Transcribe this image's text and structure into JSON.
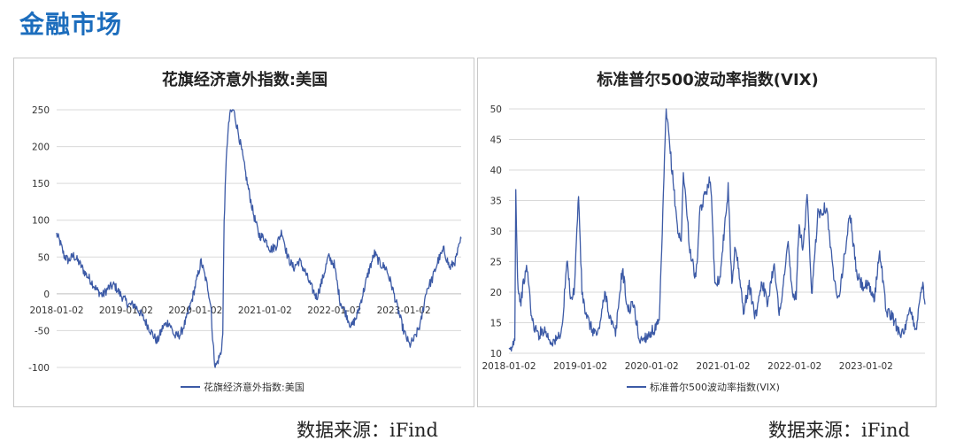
{
  "header": {
    "title": "金融市场"
  },
  "sources": {
    "left": "数据来源：iFind",
    "right": "数据来源：iFind"
  },
  "colors": {
    "accent": "#1c6dbd",
    "series": "#3c5aa6"
  },
  "chart_data": [
    {
      "type": "line",
      "title": "花旗经济意外指数:美国",
      "xlabel": "",
      "ylabel": "",
      "ylim": [
        -100,
        250
      ],
      "yticks": [
        "250",
        "200",
        "150",
        "100",
        "50",
        "0",
        "-50",
        "-100"
      ],
      "xlim": [
        "2018-01-02",
        "2023-10-31"
      ],
      "xticks": [
        "2018-01-02",
        "2019-01-02",
        "2020-01-02",
        "2021-01-02",
        "2022-01-02",
        "2023-01-02"
      ],
      "xtick_position": "at-zero-line",
      "grid": true,
      "legend": "bottom",
      "series": [
        {
          "name": "花旗经济意外指数:美国",
          "points": [
            [
              "2018-01-02",
              81
            ],
            [
              "2018-01-20",
              70
            ],
            [
              "2018-02-10",
              52
            ],
            [
              "2018-03-05",
              45
            ],
            [
              "2018-04-01",
              52
            ],
            [
              "2018-05-01",
              42
            ],
            [
              "2018-06-01",
              28
            ],
            [
              "2018-07-01",
              18
            ],
            [
              "2018-08-01",
              5
            ],
            [
              "2018-09-01",
              -2
            ],
            [
              "2018-10-01",
              8
            ],
            [
              "2018-11-01",
              12
            ],
            [
              "2018-12-01",
              0
            ],
            [
              "2019-01-15",
              -15
            ],
            [
              "2019-02-15",
              -15
            ],
            [
              "2019-03-15",
              -25
            ],
            [
              "2019-04-15",
              -38
            ],
            [
              "2019-05-15",
              -52
            ],
            [
              "2019-06-15",
              -65
            ],
            [
              "2019-07-15",
              -45
            ],
            [
              "2019-08-15",
              -38
            ],
            [
              "2019-09-15",
              -58
            ],
            [
              "2019-10-15",
              -55
            ],
            [
              "2019-11-15",
              -35
            ],
            [
              "2019-12-15",
              -8
            ],
            [
              "2020-01-10",
              20
            ],
            [
              "2020-02-01",
              44
            ],
            [
              "2020-02-20",
              25
            ],
            [
              "2020-03-10",
              5
            ],
            [
              "2020-03-25",
              -20
            ],
            [
              "2020-04-01",
              -60
            ],
            [
              "2020-04-15",
              -100
            ],
            [
              "2020-05-01",
              -90
            ],
            [
              "2020-05-15",
              -80
            ],
            [
              "2020-05-25",
              -55
            ],
            [
              "2020-06-01",
              100
            ],
            [
              "2020-06-15",
              200
            ],
            [
              "2020-07-01",
              245
            ],
            [
              "2020-07-20",
              250
            ],
            [
              "2020-08-10",
              225
            ],
            [
              "2020-09-01",
              195
            ],
            [
              "2020-10-01",
              150
            ],
            [
              "2020-11-01",
              110
            ],
            [
              "2020-12-01",
              80
            ],
            [
              "2021-01-01",
              75
            ],
            [
              "2021-02-01",
              60
            ],
            [
              "2021-03-01",
              65
            ],
            [
              "2021-04-01",
              85
            ],
            [
              "2021-05-01",
              50
            ],
            [
              "2021-06-01",
              35
            ],
            [
              "2021-07-01",
              45
            ],
            [
              "2021-08-01",
              30
            ],
            [
              "2021-09-01",
              10
            ],
            [
              "2021-10-01",
              -5
            ],
            [
              "2021-11-01",
              20
            ],
            [
              "2021-12-01",
              50
            ],
            [
              "2022-01-01",
              40
            ],
            [
              "2022-02-01",
              -10
            ],
            [
              "2022-03-01",
              -25
            ],
            [
              "2022-04-01",
              -45
            ],
            [
              "2022-05-01",
              -30
            ],
            [
              "2022-06-01",
              0
            ],
            [
              "2022-07-01",
              30
            ],
            [
              "2022-08-01",
              55
            ],
            [
              "2022-09-01",
              40
            ],
            [
              "2022-10-01",
              35
            ],
            [
              "2022-11-01",
              10
            ],
            [
              "2022-12-01",
              -20
            ],
            [
              "2023-01-01",
              -50
            ],
            [
              "2023-02-01",
              -70
            ],
            [
              "2023-03-01",
              -60
            ],
            [
              "2023-04-01",
              -40
            ],
            [
              "2023-05-01",
              5
            ],
            [
              "2023-06-01",
              20
            ],
            [
              "2023-07-01",
              45
            ],
            [
              "2023-08-01",
              60
            ],
            [
              "2023-09-01",
              35
            ],
            [
              "2023-10-01",
              45
            ],
            [
              "2023-10-31",
              75
            ]
          ]
        }
      ]
    },
    {
      "type": "line",
      "title": "标准普尔500波动率指数(VIX)",
      "xlabel": "",
      "ylabel": "",
      "ylim": [
        10,
        50
      ],
      "yticks": [
        "50",
        "45",
        "40",
        "35",
        "30",
        "25",
        "20",
        "15",
        "10"
      ],
      "xlim": [
        "2018-01-02",
        "2023-10-31"
      ],
      "xticks": [
        "2018-01-02",
        "2019-01-02",
        "2020-01-02",
        "2021-01-02",
        "2022-01-02",
        "2023-01-02"
      ],
      "xtick_position": "bottom",
      "grid": true,
      "legend": "bottom",
      "series": [
        {
          "name": "标准普尔500波动率指数(VIX)",
          "points": [
            [
              "2018-01-02",
              10
            ],
            [
              "2018-01-20",
              11
            ],
            [
              "2018-02-01",
              13
            ],
            [
              "2018-02-06",
              37
            ],
            [
              "2018-02-15",
              22
            ],
            [
              "2018-03-01",
              18
            ],
            [
              "2018-03-20",
              22
            ],
            [
              "2018-04-05",
              24
            ],
            [
              "2018-05-01",
              15
            ],
            [
              "2018-06-01",
              13
            ],
            [
              "2018-07-01",
              14
            ],
            [
              "2018-08-01",
              12
            ],
            [
              "2018-09-01",
              12
            ],
            [
              "2018-10-01",
              14
            ],
            [
              "2018-10-25",
              25
            ],
            [
              "2018-11-15",
              19
            ],
            [
              "2018-12-01",
              20
            ],
            [
              "2018-12-24",
              36
            ],
            [
              "2019-01-10",
              20
            ],
            [
              "2019-02-01",
              16
            ],
            [
              "2019-03-01",
              14
            ],
            [
              "2019-04-01",
              13
            ],
            [
              "2019-05-10",
              20
            ],
            [
              "2019-06-01",
              16
            ],
            [
              "2019-07-01",
              13
            ],
            [
              "2019-08-05",
              24
            ],
            [
              "2019-09-01",
              17
            ],
            [
              "2019-10-01",
              18
            ],
            [
              "2019-11-01",
              12
            ],
            [
              "2019-12-15",
              13
            ],
            [
              "2020-01-20",
              14
            ],
            [
              "2020-02-10",
              15
            ],
            [
              "2020-02-25",
              30
            ],
            [
              "2020-03-16",
              50
            ],
            [
              "2020-04-15",
              40
            ],
            [
              "2020-05-15",
              30
            ],
            [
              "2020-06-01",
              28
            ],
            [
              "2020-06-12",
              40
            ],
            [
              "2020-07-15",
              27
            ],
            [
              "2020-08-15",
              22
            ],
            [
              "2020-09-05",
              33
            ],
            [
              "2020-10-28",
              39
            ],
            [
              "2020-11-20",
              22
            ],
            [
              "2020-12-15",
              22
            ],
            [
              "2021-01-27",
              37
            ],
            [
              "2021-02-15",
              21
            ],
            [
              "2021-03-05",
              28
            ],
            [
              "2021-04-15",
              17
            ],
            [
              "2021-05-15",
              21
            ],
            [
              "2021-06-15",
              16
            ],
            [
              "2021-07-19",
              22
            ],
            [
              "2021-08-15",
              18
            ],
            [
              "2021-09-20",
              25
            ],
            [
              "2021-10-15",
              16
            ],
            [
              "2021-11-30",
              28
            ],
            [
              "2021-12-20",
              20
            ],
            [
              "2022-01-10",
              19
            ],
            [
              "2022-01-25",
              31
            ],
            [
              "2022-02-15",
              27
            ],
            [
              "2022-03-07",
              36
            ],
            [
              "2022-03-30",
              19
            ],
            [
              "2022-05-01",
              33
            ],
            [
              "2022-06-15",
              34
            ],
            [
              "2022-07-15",
              24
            ],
            [
              "2022-08-15",
              19
            ],
            [
              "2022-09-15",
              26
            ],
            [
              "2022-10-12",
              33
            ],
            [
              "2022-11-15",
              23
            ],
            [
              "2022-12-15",
              21
            ],
            [
              "2023-01-10",
              21
            ],
            [
              "2023-02-15",
              19
            ],
            [
              "2023-03-13",
              27
            ],
            [
              "2023-04-15",
              17
            ],
            [
              "2023-05-15",
              16
            ],
            [
              "2023-06-15",
              14
            ],
            [
              "2023-07-15",
              13
            ],
            [
              "2023-08-15",
              17
            ],
            [
              "2023-09-15",
              14
            ],
            [
              "2023-10-20",
              22
            ],
            [
              "2023-10-31",
              18
            ]
          ]
        }
      ]
    }
  ]
}
